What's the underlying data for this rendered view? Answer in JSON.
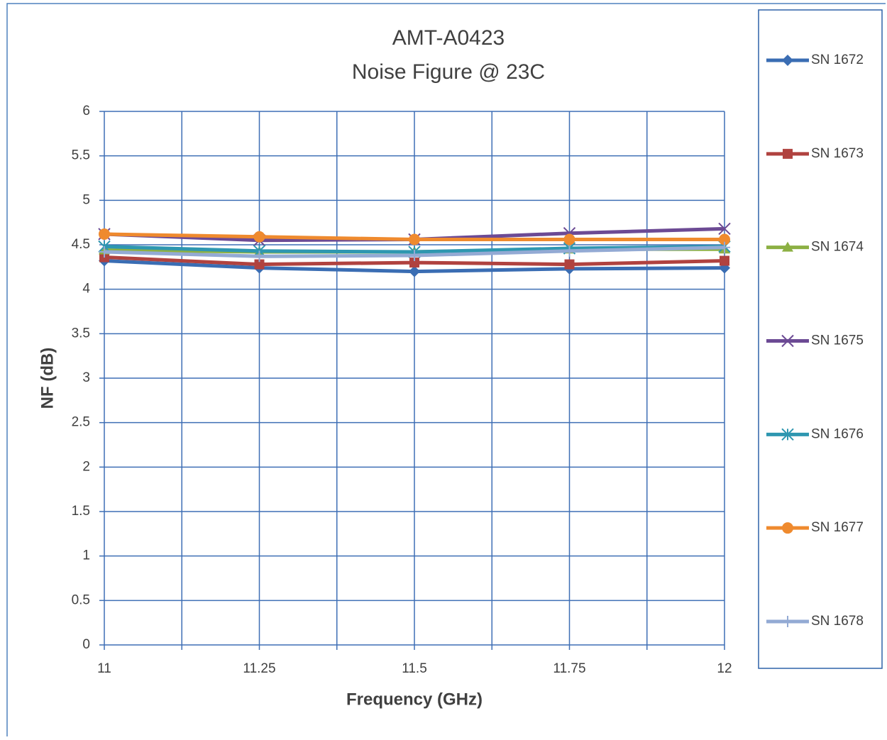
{
  "chart_data": {
    "type": "line",
    "title": "AMT-A0423",
    "subtitle": "Noise Figure @ 23C",
    "x_label": "Frequency (GHz)",
    "y_label": "NF (dB)",
    "x": [
      11,
      11.25,
      11.5,
      11.75,
      12
    ],
    "xlim": [
      11,
      12
    ],
    "xticks": [
      11,
      11.25,
      11.5,
      11.75,
      12
    ],
    "xgrid": [
      11,
      11.125,
      11.25,
      11.375,
      11.5,
      11.625,
      11.75,
      11.875,
      12
    ],
    "ylim": [
      0,
      6
    ],
    "yticks": [
      0,
      0.5,
      1,
      1.5,
      2,
      2.5,
      3,
      3.5,
      4,
      4.5,
      5,
      5.5,
      6
    ],
    "grid": true,
    "legend": "right",
    "series": [
      {
        "name": "SN 1672",
        "color": "#3a6db3",
        "marker": "diamond",
        "values": [
          4.32,
          4.24,
          4.2,
          4.23,
          4.24
        ]
      },
      {
        "name": "SN 1673",
        "color": "#b0423f",
        "marker": "square",
        "values": [
          4.36,
          4.28,
          4.3,
          4.28,
          4.32
        ]
      },
      {
        "name": "SN 1674",
        "color": "#8cb043",
        "marker": "triangle",
        "values": [
          4.44,
          4.42,
          4.42,
          4.45,
          4.45
        ]
      },
      {
        "name": "SN 1675",
        "color": "#6c4a94",
        "marker": "x",
        "values": [
          4.62,
          4.55,
          4.56,
          4.63,
          4.68
        ]
      },
      {
        "name": "SN 1676",
        "color": "#2e97b0",
        "marker": "asterisk",
        "values": [
          4.48,
          4.43,
          4.42,
          4.46,
          4.48
        ]
      },
      {
        "name": "SN 1677",
        "color": "#ef8a2e",
        "marker": "circle",
        "values": [
          4.62,
          4.59,
          4.56,
          4.56,
          4.56
        ]
      },
      {
        "name": "SN 1678",
        "color": "#93aad4",
        "marker": "plus",
        "values": [
          4.42,
          4.37,
          4.38,
          4.43,
          4.47
        ]
      }
    ]
  }
}
